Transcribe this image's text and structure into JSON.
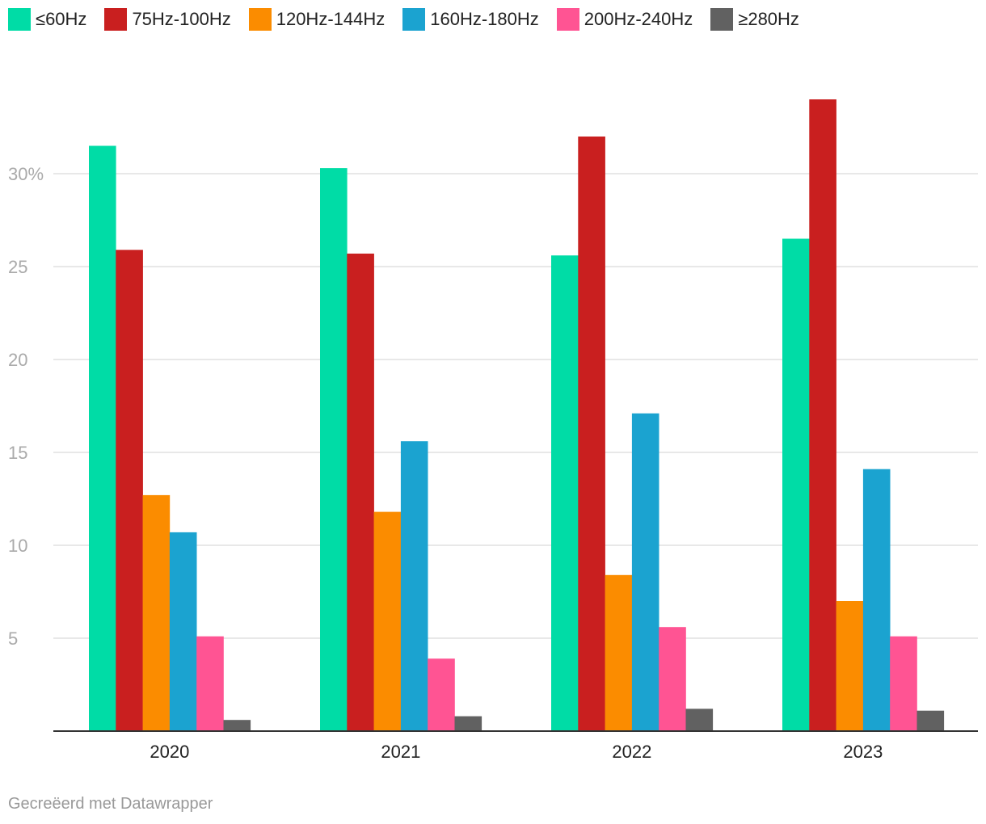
{
  "chart_data": {
    "type": "bar",
    "title": "",
    "xlabel": "",
    "ylabel": "",
    "categories": [
      "2020",
      "2021",
      "2022",
      "2023"
    ],
    "series": [
      {
        "name": "≤60Hz",
        "color": "#00dca6",
        "values": [
          31.5,
          30.3,
          25.6,
          26.5
        ]
      },
      {
        "name": "75Hz-100Hz",
        "color": "#c91f1f",
        "values": [
          25.9,
          25.7,
          32.0,
          34.0
        ]
      },
      {
        "name": "120Hz-144Hz",
        "color": "#fb8c00",
        "values": [
          12.7,
          11.8,
          8.4,
          7.0
        ]
      },
      {
        "name": "160Hz-180Hz",
        "color": "#1ba3d0",
        "values": [
          10.7,
          15.6,
          17.1,
          14.1
        ]
      },
      {
        "name": "200Hz-240Hz",
        "color": "#ff5493",
        "values": [
          5.1,
          3.9,
          5.6,
          5.1
        ]
      },
      {
        "name": "≥280Hz",
        "color": "#616161",
        "values": [
          0.6,
          0.8,
          1.2,
          1.1
        ]
      }
    ],
    "yticks": [
      {
        "value": 5,
        "label": "5"
      },
      {
        "value": 10,
        "label": "10"
      },
      {
        "value": 15,
        "label": "15"
      },
      {
        "value": 20,
        "label": "20"
      },
      {
        "value": 25,
        "label": "25"
      },
      {
        "value": 30,
        "label": "30%"
      }
    ],
    "ylim": [
      0,
      34
    ],
    "grid": true,
    "legend": "top-left"
  },
  "footer": {
    "credit": "Gecreëerd met Datawrapper"
  }
}
